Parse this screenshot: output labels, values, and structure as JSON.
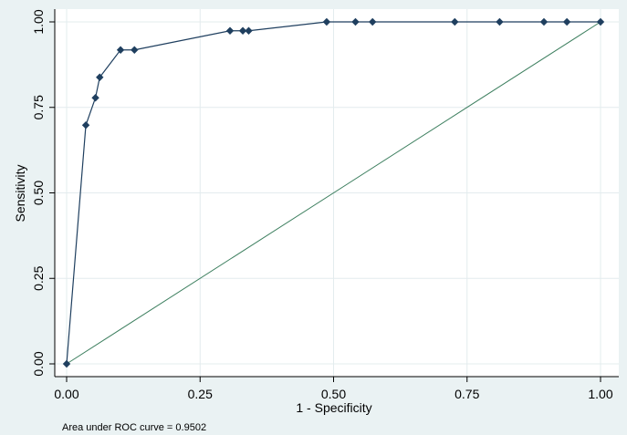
{
  "chart_data": {
    "type": "line",
    "xlabel": "1 - Specificity",
    "ylabel": "Sensitivity",
    "xlim": [
      0,
      1
    ],
    "ylim": [
      0,
      1
    ],
    "x_ticks": [
      "0.00",
      "0.25",
      "0.50",
      "0.75",
      "1.00"
    ],
    "y_ticks": [
      "0.00",
      "0.25",
      "0.50",
      "0.75",
      "1.00"
    ],
    "grid": true,
    "note": "Area under ROC curve = 0.9502",
    "series": [
      {
        "points": [
          [
            0.0,
            0.0
          ],
          [
            0.036,
            0.698
          ],
          [
            0.054,
            0.778
          ],
          [
            0.062,
            0.838
          ],
          [
            0.101,
            0.918
          ],
          [
            0.127,
            0.918
          ],
          [
            0.306,
            0.974
          ],
          [
            0.33,
            0.974
          ],
          [
            0.341,
            0.974
          ],
          [
            0.487,
            1.0
          ],
          [
            0.541,
            1.0
          ],
          [
            0.573,
            1.0
          ],
          [
            0.727,
            1.0
          ],
          [
            0.811,
            1.0
          ],
          [
            0.894,
            1.0
          ],
          [
            0.937,
            1.0
          ],
          [
            1.0,
            1.0
          ]
        ],
        "color": "#1f3f5f"
      },
      {
        "points": [
          [
            0,
            0
          ],
          [
            1,
            1
          ]
        ],
        "color": "#3d7f5f"
      }
    ]
  }
}
